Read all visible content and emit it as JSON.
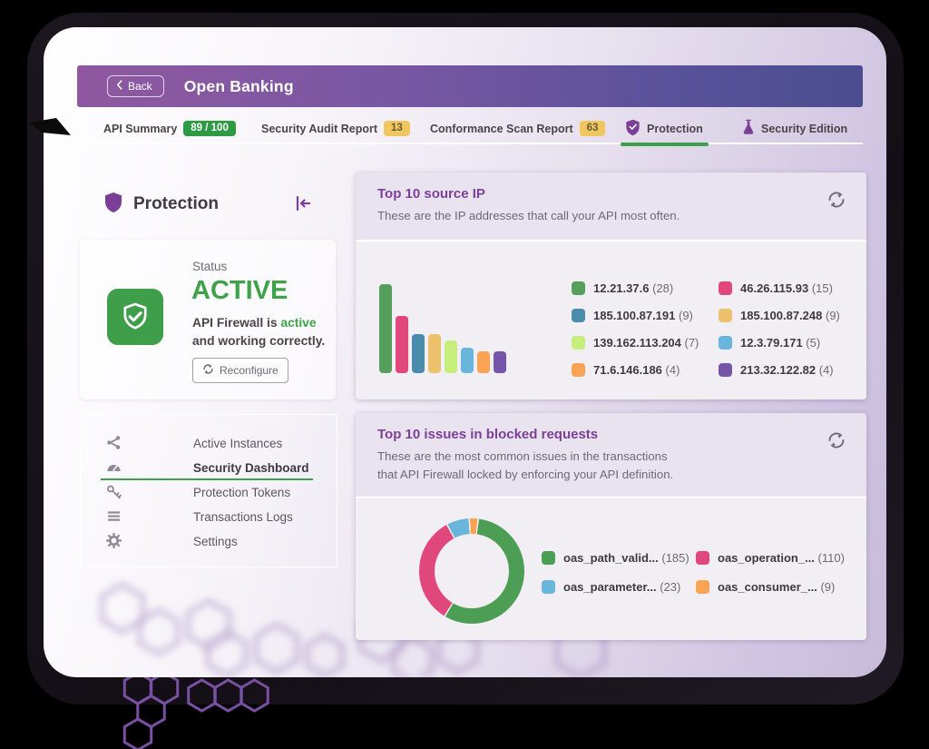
{
  "header": {
    "back_label": "Back",
    "title": "Open Banking"
  },
  "tabs": [
    {
      "label": "API Summary",
      "badge": "89 / 100",
      "badge_style": "green",
      "active": false
    },
    {
      "label": "Security Audit Report",
      "badge": "13",
      "badge_style": "yellow",
      "active": false
    },
    {
      "label": "Conformance Scan Report",
      "badge": "63",
      "badge_style": "yellow",
      "active": false
    },
    {
      "label": "Protection",
      "icon": "shield-check-icon",
      "active": true
    },
    {
      "label": "Security Edition",
      "icon": "flask-icon",
      "active": false
    }
  ],
  "sidebar": {
    "title": "Protection",
    "status_card": {
      "label": "Status",
      "value": "ACTIVE",
      "message_prefix": "API Firewall is ",
      "message_highlight": "active",
      "message_line2": "and working correctly.",
      "button_label": "Reconfigure"
    },
    "menu": [
      {
        "label": "Active Instances",
        "icon": "share-icon",
        "active": false
      },
      {
        "label": "Security Dashboard",
        "icon": "dashboard-icon",
        "active": true
      },
      {
        "label": "Protection Tokens",
        "icon": "key-icon",
        "active": false
      },
      {
        "label": "Transactions Logs",
        "icon": "list-icon",
        "active": false
      },
      {
        "label": "Settings",
        "icon": "gear-icon",
        "active": false
      }
    ]
  },
  "panels": {
    "source_ip": {
      "title": "Top 10 source IP",
      "description": "These are the IP addresses that call your API most often."
    },
    "blocked_issues": {
      "title": "Top 10 issues in blocked requests",
      "description_line1": "These are the most common issues in the transactions",
      "description_line2": "that API Firewall locked by enforcing your API definition."
    }
  },
  "chart_data": [
    {
      "type": "bar",
      "title": "Top 10 source IP",
      "categories": [
        "12.21.37.6",
        "46.26.115.93",
        "185.100.87.191",
        "185.100.87.248",
        "139.162.113.204",
        "12.3.79.171",
        "71.6.146.186",
        "213.32.122.82"
      ],
      "values": [
        28,
        15,
        9,
        9,
        7,
        5,
        4,
        4
      ],
      "colors": [
        "#559e5c",
        "#e0487c",
        "#4a8cab",
        "#ecc36c",
        "#c5ee7d",
        "#6ab5dc",
        "#fba355",
        "#7655a8"
      ],
      "legend_position": "right",
      "grid": false
    },
    {
      "type": "donut",
      "title": "Top 10 issues in blocked requests",
      "labels": [
        "oas_path_valid...",
        "oas_operation_...",
        "oas_parameter...",
        "oas_consumer_..."
      ],
      "values": [
        185,
        110,
        23,
        9
      ],
      "colors": [
        "#4d9e55",
        "#e0487c",
        "#6ab5dc",
        "#fba355"
      ],
      "legend_position": "right",
      "rotation_deg": 8
    }
  ],
  "colors": {
    "accent_purple": "#7b3f98",
    "active_green": "#3fa24a",
    "badge_green": "#2f9a44",
    "badge_yellow": "#f0c75f",
    "hex_outline": "#7a50a3"
  }
}
